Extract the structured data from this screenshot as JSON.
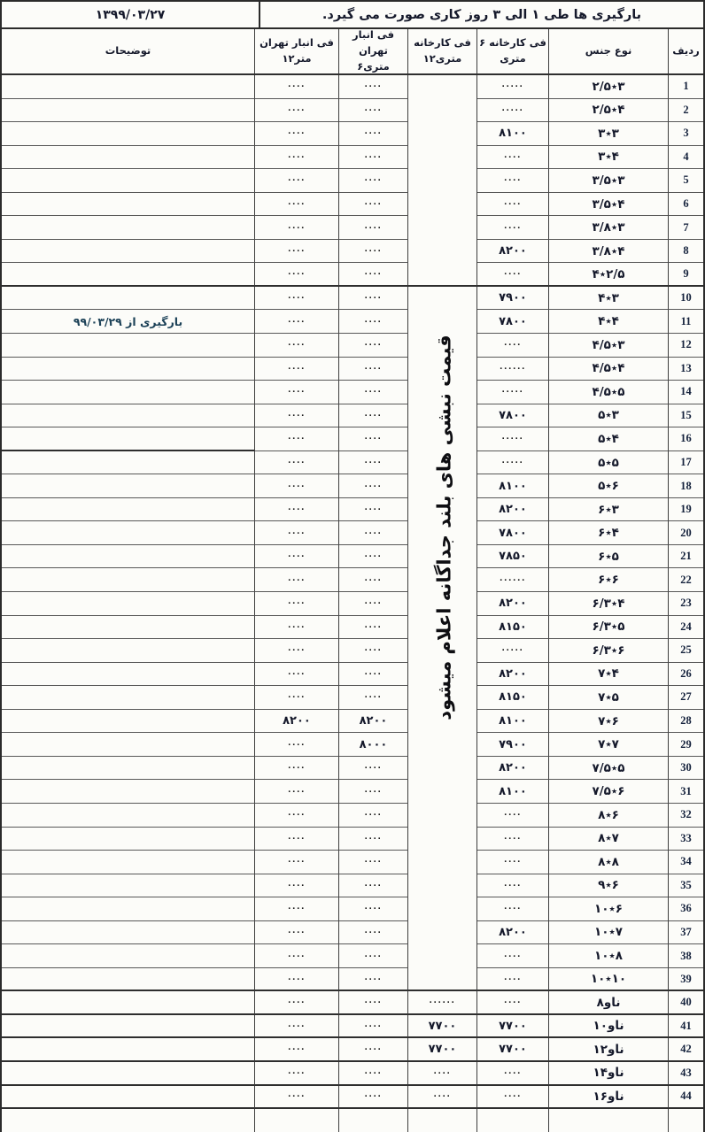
{
  "title_bar": {
    "notice": "بارگیری ها طی ۱ الی ۳ روز کاری صورت می گیرد.",
    "date": "۱۳۹۹/۰۳/۲۷"
  },
  "columns": {
    "radif": "ردیف",
    "type": "نوع جنس",
    "factory6": {
      "line1": "فی کارخانه ۶",
      "line2_word": "متری"
    },
    "factory12": {
      "line1": "فی کارخانه",
      "line2_num": "۱۲",
      "line2_word": "متری"
    },
    "tehran6": {
      "line1": "فی انبار تهران",
      "line2_num": "۶",
      "line2_word": "متری"
    },
    "tehran12": {
      "line1": "فی انبار تهران",
      "line2_num": "۱۲",
      "line2_word": "متر"
    },
    "notes": "توضیحات"
  },
  "merged_note": "قیمت نبشی های بلند جداگانه اعلام میشود",
  "colors": {
    "border": "#3d3d3d",
    "text": "#15192b",
    "note_text": "#1d4258",
    "background": "#fcfcf9"
  },
  "rows": [
    {
      "n": "1",
      "type": "۲/۵٭۳",
      "f6": ".....",
      "t6": "....",
      "t12": "....",
      "note": ""
    },
    {
      "n": "2",
      "type": "۲/۵٭۴",
      "f6": ".....",
      "t6": "....",
      "t12": "....",
      "note": ""
    },
    {
      "n": "3",
      "type": "۳٭۳",
      "f6": "۸۱۰۰",
      "t6": "....",
      "t12": "....",
      "note": ""
    },
    {
      "n": "4",
      "type": "۳٭۴",
      "f6": "....",
      "t6": "....",
      "t12": "....",
      "note": ""
    },
    {
      "n": "5",
      "type": "۳/۵٭۳",
      "f6": "....",
      "t6": "....",
      "t12": "....",
      "note": ""
    },
    {
      "n": "6",
      "type": "۳/۵٭۴",
      "f6": "....",
      "t6": "....",
      "t12": "....",
      "note": ""
    },
    {
      "n": "7",
      "type": "۳/۸٭۳",
      "f6": "....",
      "t6": "....",
      "t12": "....",
      "note": ""
    },
    {
      "n": "8",
      "type": "۳/۸٭۴",
      "f6": "۸۲۰۰",
      "t6": "....",
      "t12": "....",
      "note": ""
    },
    {
      "n": "9",
      "type": "۴٭۲/۵",
      "f6": "....",
      "t6": "....",
      "t12": "....",
      "note": "",
      "thick": true
    },
    {
      "n": "10",
      "type": "۴٭۳",
      "f6": "۷۹۰۰",
      "t6": "....",
      "t12": "....",
      "note": ""
    },
    {
      "n": "11",
      "type": "۴٭۴",
      "f6": "۷۸۰۰",
      "t6": "....",
      "t12": "....",
      "note": "بارگیری از ۹۹/۰۳/۲۹"
    },
    {
      "n": "12",
      "type": "۴/۵٭۳",
      "f6": "....",
      "t6": "....",
      "t12": "....",
      "note": ""
    },
    {
      "n": "13",
      "type": "۴/۵٭۴",
      "f6": "......",
      "t6": "....",
      "t12": "....",
      "note": ""
    },
    {
      "n": "14",
      "type": "۴/۵٭۵",
      "f6": ".....",
      "t6": "....",
      "t12": "....",
      "note": ""
    },
    {
      "n": "15",
      "type": "۵٭۳",
      "f6": "۷۸۰۰",
      "t6": "....",
      "t12": "....",
      "note": ""
    },
    {
      "n": "16",
      "type": "۵٭۴",
      "f6": ".....",
      "t6": "....",
      "t12": "....",
      "note": "",
      "thick_note": true
    },
    {
      "n": "17",
      "type": "۵٭۵",
      "f6": ".....",
      "t6": "....",
      "t12": "....",
      "note": ""
    },
    {
      "n": "18",
      "type": "۵٭۶",
      "f6": "۸۱۰۰",
      "t6": "....",
      "t12": "....",
      "note": ""
    },
    {
      "n": "19",
      "type": "۶٭۳",
      "f6": "۸۲۰۰",
      "t6": "....",
      "t12": "....",
      "note": ""
    },
    {
      "n": "20",
      "type": "۶٭۴",
      "f6": "۷۸۰۰",
      "t6": "....",
      "t12": "....",
      "note": ""
    },
    {
      "n": "21",
      "type": "۶٭۵",
      "f6": "۷۸۵۰",
      "t6": "....",
      "t12": "....",
      "note": ""
    },
    {
      "n": "22",
      "type": "۶٭۶",
      "f6": "......",
      "t6": "....",
      "t12": "....",
      "note": ""
    },
    {
      "n": "23",
      "type": "۶/۳٭۴",
      "f6": "۸۲۰۰",
      "t6": "....",
      "t12": "....",
      "note": ""
    },
    {
      "n": "24",
      "type": "۶/۳٭۵",
      "f6": "۸۱۵۰",
      "t6": "....",
      "t12": "....",
      "note": ""
    },
    {
      "n": "25",
      "type": "۶/۳٭۶",
      "f6": ".....",
      "t6": "....",
      "t12": "....",
      "note": ""
    },
    {
      "n": "26",
      "type": "۷٭۴",
      "f6": "۸۲۰۰",
      "t6": "....",
      "t12": "....",
      "note": ""
    },
    {
      "n": "27",
      "type": "۷٭۵",
      "f6": "۸۱۵۰",
      "t6": "....",
      "t12": "....",
      "note": ""
    },
    {
      "n": "28",
      "type": "۷٭۶",
      "f6": "۸۱۰۰",
      "t6": "۸۲۰۰",
      "t12": "۸۲۰۰",
      "note": ""
    },
    {
      "n": "29",
      "type": "۷٭۷",
      "f6": "۷۹۰۰",
      "t6": "۸۰۰۰",
      "t12": "....",
      "note": ""
    },
    {
      "n": "30",
      "type": "۷/۵٭۵",
      "f6": "۸۲۰۰",
      "t6": "....",
      "t12": "....",
      "note": ""
    },
    {
      "n": "31",
      "type": "۷/۵٭۶",
      "f6": "۸۱۰۰",
      "t6": "....",
      "t12": "....",
      "note": ""
    },
    {
      "n": "32",
      "type": "۸٭۶",
      "f6": "....",
      "t6": "....",
      "t12": "....",
      "note": ""
    },
    {
      "n": "33",
      "type": "۸٭۷",
      "f6": "....",
      "t6": "....",
      "t12": "....",
      "note": ""
    },
    {
      "n": "34",
      "type": "۸٭۸",
      "f6": "....",
      "t6": "....",
      "t12": "....",
      "note": ""
    },
    {
      "n": "35",
      "type": "۹٭۶",
      "f6": "....",
      "t6": "....",
      "t12": "....",
      "note": ""
    },
    {
      "n": "36",
      "type": "۱۰٭۶",
      "f6": "....",
      "t6": "....",
      "t12": "....",
      "note": ""
    },
    {
      "n": "37",
      "type": "۱۰٭۷",
      "f6": "۸۲۰۰",
      "t6": "....",
      "t12": "....",
      "note": ""
    },
    {
      "n": "38",
      "type": "۱۰٭۸",
      "f6": "....",
      "t6": "....",
      "t12": "....",
      "note": ""
    },
    {
      "n": "39",
      "type": "۱۰٭۱۰",
      "f6": "....",
      "t6": "....",
      "t12": "....",
      "note": "",
      "thick": true
    },
    {
      "n": "40",
      "type": "ناو۸",
      "f6": "....",
      "f12": "......",
      "t6": "....",
      "t12": "....",
      "note": "",
      "thick": true
    },
    {
      "n": "41",
      "type": "ناو۱۰",
      "f6": "۷۷۰۰",
      "f12": "۷۷۰۰",
      "t6": "....",
      "t12": "....",
      "note": "",
      "thick": true
    },
    {
      "n": "42",
      "type": "ناو۱۲",
      "f6": "۷۷۰۰",
      "f12": "۷۷۰۰",
      "t6": "....",
      "t12": "....",
      "note": "",
      "thick": true
    },
    {
      "n": "43",
      "type": "ناو۱۴",
      "f6": "....",
      "f12": "....",
      "t6": "....",
      "t12": "....",
      "note": "",
      "thick": true
    },
    {
      "n": "44",
      "type": "ناو۱۶",
      "f6": "....",
      "f12": "....",
      "t6": "....",
      "t12": "....",
      "note": "",
      "thick": true
    }
  ]
}
